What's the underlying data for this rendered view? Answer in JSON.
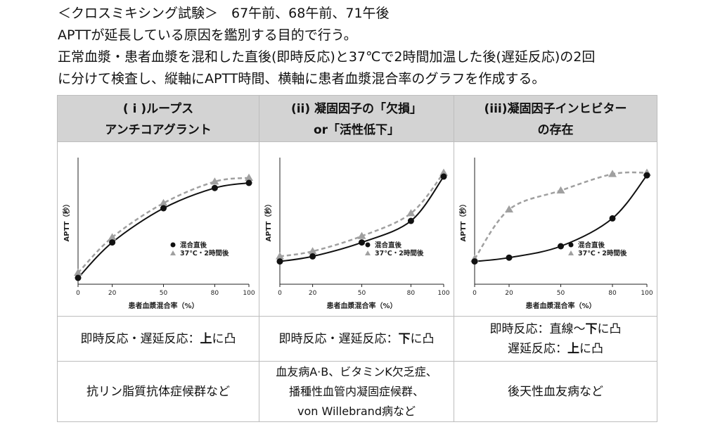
{
  "intro": [
    "＜クロスミキシング試験＞　67午前、68午前、71午後",
    "APTTが延長している原因を鑑別する目的で行う。",
    "正常血漿・患者血漿を混和した直後(即時反応)と37℃で2時間加温した後(遅延反応)の2回",
    "に分けて検査し、縦軸にAPTT時間、横軸に患者血漿混合率のグラフを作成する。"
  ],
  "headers": [
    {
      "line1": "( i )ループス",
      "line2": "アンチコアグラント"
    },
    {
      "line1": "(ii) 凝固因子の「欠損」",
      "line2": "or「活性低下」"
    },
    {
      "line1": "(iii)凝固因子インヒビター",
      "line2": "の存在"
    }
  ],
  "findings": [
    {
      "line1_prefix": "即時反応・遅延反応：",
      "line1_bold": "上",
      "line1_suffix": "に凸",
      "line2": ""
    },
    {
      "line1_prefix": "即時反応・遅延反応：",
      "line1_bold": "下",
      "line1_suffix": "に凸",
      "line2": ""
    },
    {
      "line1_prefix": "即時反応：直線〜",
      "line1_bold": "下",
      "line1_suffix": "に凸",
      "line2_prefix": "遅延反応：",
      "line2_bold": "上",
      "line2_suffix": "に凸"
    }
  ],
  "examples": [
    {
      "lines": [
        "抗リン脂質抗体症候群など"
      ]
    },
    {
      "lines": [
        "血友病A·B、ビタミンK欠乏症、",
        "播種性血管内凝固症候群、",
        "von Willebrand病など"
      ]
    },
    {
      "lines": [
        "後天性血友病など"
      ]
    }
  ],
  "chart_common": {
    "ylabel": "APTT（秒）",
    "xlabel": "患者血漿混合率（%）",
    "x_ticks": [
      "0",
      "20",
      "50",
      "80",
      "100"
    ],
    "legend_immediate": "混合直後",
    "legend_delayed": "37℃・2時間後",
    "color_immediate": "#111111",
    "color_delayed": "#a0a0a0"
  },
  "chart_data": [
    {
      "type": "line",
      "title": "",
      "x": [
        0,
        20,
        50,
        80,
        100
      ],
      "ylim": [
        0,
        1
      ],
      "series": [
        {
          "name": "混合直後",
          "values": [
            0.05,
            0.33,
            0.6,
            0.76,
            0.8
          ]
        },
        {
          "name": "37℃・2時間後",
          "values": [
            0.09,
            0.37,
            0.64,
            0.81,
            0.84
          ]
        }
      ]
    },
    {
      "type": "line",
      "title": "",
      "x": [
        0,
        20,
        50,
        80,
        100
      ],
      "ylim": [
        0,
        1
      ],
      "series": [
        {
          "name": "混合直後",
          "values": [
            0.18,
            0.22,
            0.33,
            0.5,
            0.85
          ]
        },
        {
          "name": "37℃・2時間後",
          "values": [
            0.22,
            0.26,
            0.38,
            0.56,
            0.88
          ]
        }
      ]
    },
    {
      "type": "line",
      "title": "",
      "x": [
        0,
        20,
        50,
        80,
        100
      ],
      "ylim": [
        0,
        1
      ],
      "series": [
        {
          "name": "混合直後",
          "values": [
            0.18,
            0.21,
            0.3,
            0.52,
            0.86
          ]
        },
        {
          "name": "37℃・2時間後",
          "values": [
            0.2,
            0.59,
            0.74,
            0.87,
            0.88
          ]
        }
      ]
    }
  ]
}
